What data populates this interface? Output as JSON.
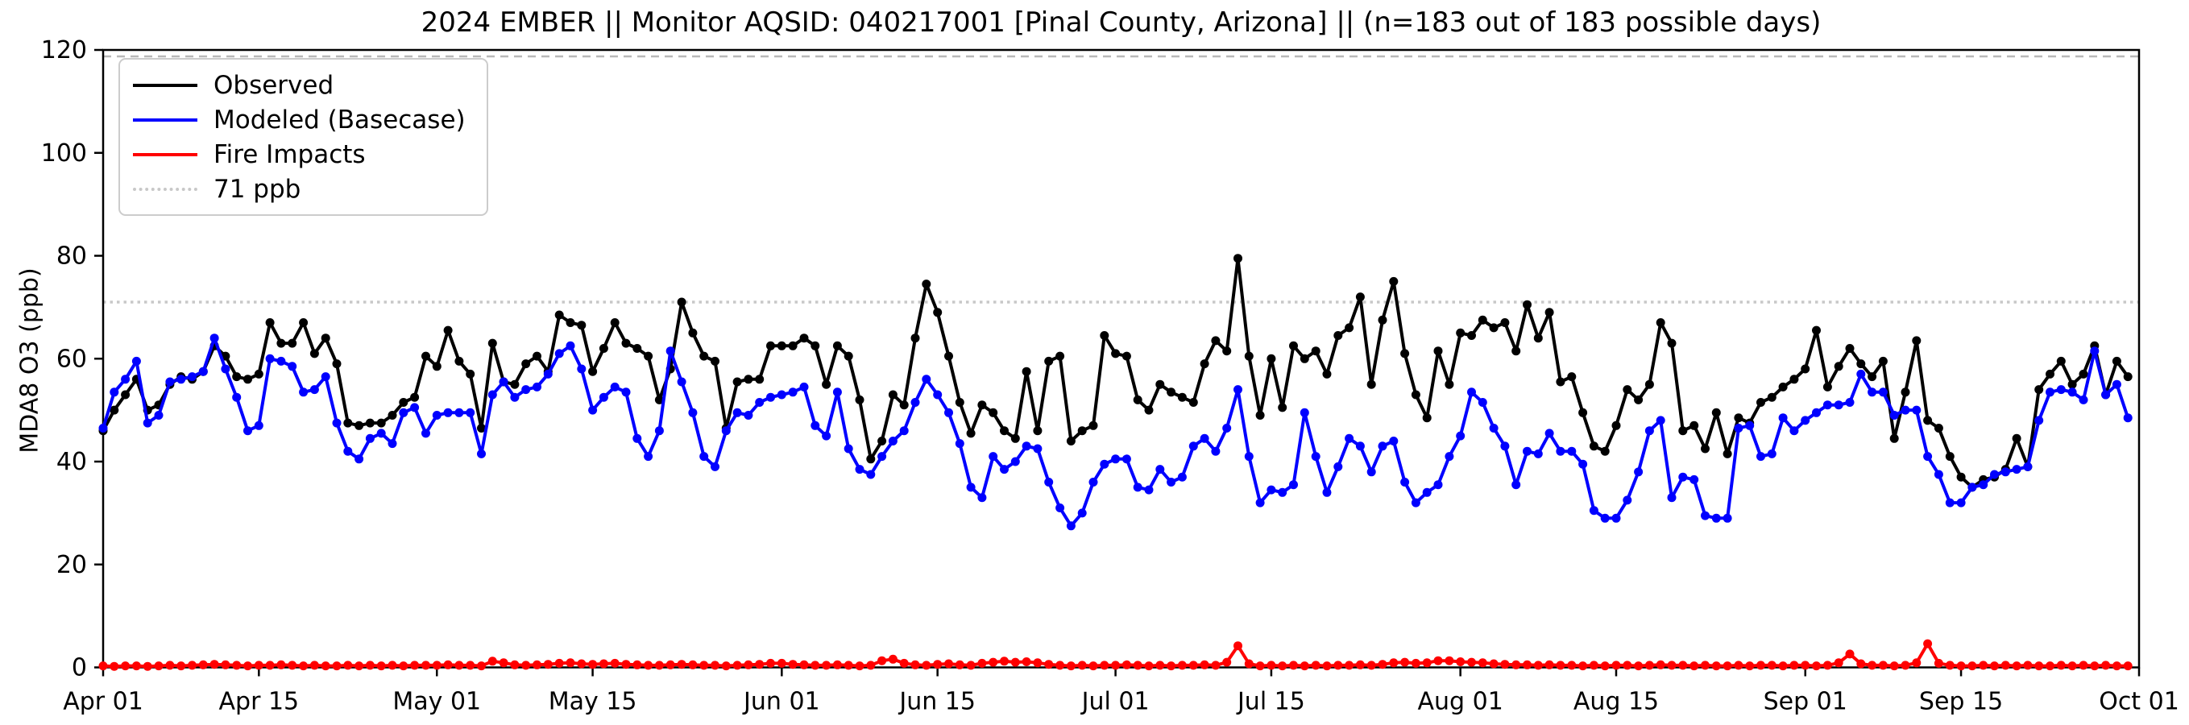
{
  "title": "2024 EMBER || Monitor AQSID: 040217001 [Pinal County, Arizona] || (n=183 out of 183 possible days)",
  "legend": [
    {
      "label": "Observed",
      "color": "#000000",
      "style": "solid"
    },
    {
      "label": "Modeled (Basecase)",
      "color": "#0000ff",
      "style": "solid"
    },
    {
      "label": "Fire Impacts",
      "color": "#ff0000",
      "style": "solid"
    },
    {
      "label": "71 ppb",
      "color": "#c8c8c8",
      "style": "dotted"
    }
  ],
  "chart_data": {
    "type": "line",
    "title": "2024 EMBER || Monitor AQSID: 040217001 [Pinal County, Arizona] || (n=183 out of 183 possible days)",
    "xlabel": "",
    "ylabel": "MDA8 O3 (ppb)",
    "ylim": [
      0,
      120
    ],
    "yticks": [
      0,
      20,
      40,
      60,
      80,
      100,
      120
    ],
    "n_days": 183,
    "x_start_label": "Apr 01",
    "x_end_label": "Oct 01",
    "xticks": [
      {
        "day": 0,
        "label": "Apr 01"
      },
      {
        "day": 14,
        "label": "Apr 15"
      },
      {
        "day": 30,
        "label": "May 01"
      },
      {
        "day": 44,
        "label": "May 15"
      },
      {
        "day": 61,
        "label": "Jun 01"
      },
      {
        "day": 75,
        "label": "Jun 15"
      },
      {
        "day": 91,
        "label": "Jul 01"
      },
      {
        "day": 105,
        "label": "Jul 15"
      },
      {
        "day": 122,
        "label": "Aug 01"
      },
      {
        "day": 136,
        "label": "Aug 15"
      },
      {
        "day": 153,
        "label": "Sep 01"
      },
      {
        "day": 167,
        "label": "Sep 15"
      },
      {
        "day": 183,
        "label": "Oct 01"
      }
    ],
    "threshold_ppb": 71,
    "threshold_color": "#c8c8c8",
    "top_reference_line": {
      "value": 118.8,
      "color": "#b8b8b8",
      "style": "dashed"
    },
    "grid": false,
    "legend_position": "upper-left",
    "series": [
      {
        "name": "Observed",
        "color": "#000000",
        "values": [
          46,
          50,
          53,
          56,
          50,
          51,
          55,
          56.5,
          56,
          57.5,
          62.5,
          60.5,
          56.5,
          56,
          57,
          67,
          63,
          63,
          67,
          61,
          64,
          59,
          47.5,
          47,
          47.5,
          47.5,
          49,
          51.5,
          52.5,
          60.5,
          58.5,
          65.5,
          59.5,
          57,
          46.5,
          63,
          55.5,
          55,
          59,
          60.5,
          57.5,
          68.5,
          67,
          66.5,
          57.5,
          62,
          67,
          63,
          62,
          60.5,
          52,
          58,
          71,
          65,
          60.5,
          59.5,
          46.5,
          55.5,
          56,
          56,
          62.5,
          62.5,
          62.5,
          64,
          62.5,
          55,
          62.5,
          60.5,
          52,
          40.5,
          44,
          53,
          51,
          64,
          74.5,
          69,
          60.5,
          51.5,
          45.5,
          51,
          49.5,
          46,
          44.5,
          57.5,
          46,
          59.5,
          60.5,
          44,
          46,
          47,
          64.5,
          61,
          60.5,
          52,
          50,
          55,
          53.5,
          52.5,
          51.5,
          59,
          63.5,
          61.5,
          79.5,
          60.5,
          49,
          60,
          50.5,
          62.5,
          60,
          61.5,
          57,
          64.5,
          66,
          72,
          55,
          67.5,
          75,
          61,
          53,
          48.5,
          61.5,
          55,
          65,
          64.5,
          67.5,
          66,
          67,
          61.5,
          70.5,
          64,
          69,
          55.5,
          56.5,
          49.5,
          43,
          42,
          47,
          54,
          52,
          55,
          67,
          63,
          46,
          47,
          42.5,
          49.5,
          41.5,
          48.5,
          47.5,
          51.5,
          52.5,
          54.5,
          56,
          58,
          65.5,
          54.5,
          58.5,
          62,
          59,
          56.5,
          59.5,
          44.5,
          53.5,
          63.5,
          48,
          46.5,
          41,
          37,
          35,
          36.5,
          37,
          38.5,
          44.5,
          39,
          54,
          57,
          59.5,
          55,
          57,
          62.5,
          53,
          59.5,
          56.5
        ]
      },
      {
        "name": "Modeled (Basecase)",
        "color": "#0000ff",
        "values": [
          46.5,
          53.5,
          56,
          59.5,
          47.5,
          49,
          55.5,
          56,
          56.5,
          57.5,
          64,
          58,
          52.5,
          46,
          47,
          60,
          59.5,
          58.5,
          53.5,
          54,
          56.5,
          47.5,
          42,
          40.5,
          44.5,
          45.5,
          43.5,
          49.5,
          50.5,
          45.5,
          49,
          49.5,
          49.5,
          49.5,
          41.5,
          53,
          55.5,
          52.5,
          54,
          54.5,
          57,
          61,
          62.5,
          58,
          50,
          52.5,
          54.5,
          53.5,
          44.5,
          41,
          46,
          61.5,
          55.5,
          49.5,
          41,
          39,
          46,
          49.5,
          49,
          51.5,
          52.5,
          53,
          53.5,
          54.5,
          47,
          45,
          53.5,
          42.5,
          38.5,
          37.5,
          41,
          44,
          46,
          51.5,
          56,
          53,
          49.5,
          43.5,
          35,
          33,
          41,
          38.5,
          40,
          43,
          42.5,
          36,
          31,
          27.5,
          30,
          36,
          39.5,
          40.5,
          40.5,
          35,
          34.5,
          38.5,
          36,
          37,
          43,
          44.5,
          42,
          46.5,
          54,
          41,
          32,
          34.5,
          34,
          35.5,
          49.5,
          41,
          34,
          39,
          44.5,
          43,
          38,
          43,
          44,
          36,
          32,
          34,
          35.5,
          41,
          45,
          53.5,
          51.5,
          46.5,
          43,
          35.5,
          42,
          41.5,
          45.5,
          42,
          42,
          39.5,
          30.5,
          29,
          29,
          32.5,
          38,
          46,
          48,
          33,
          37,
          36.5,
          29.5,
          29,
          29,
          46.5,
          47,
          41,
          41.5,
          48.5,
          46,
          48,
          49.5,
          51,
          51,
          51.5,
          57,
          53.5,
          53.5,
          49,
          50,
          50,
          41,
          37.5,
          32,
          32,
          35,
          35.5,
          37.5,
          38,
          38.5,
          39,
          48,
          53.5,
          54,
          53.5,
          52,
          61.5,
          53,
          55,
          48.5
        ]
      },
      {
        "name": "Fire Impacts",
        "color": "#ff0000",
        "values": [
          0.3,
          0.2,
          0.3,
          0.3,
          0.2,
          0.3,
          0.4,
          0.3,
          0.4,
          0.5,
          0.6,
          0.5,
          0.4,
          0.3,
          0.4,
          0.4,
          0.5,
          0.4,
          0.3,
          0.4,
          0.3,
          0.3,
          0.4,
          0.3,
          0.4,
          0.3,
          0.4,
          0.3,
          0.4,
          0.4,
          0.4,
          0.5,
          0.4,
          0.4,
          0.3,
          1.2,
          0.9,
          0.5,
          0.4,
          0.5,
          0.6,
          0.8,
          0.9,
          0.7,
          0.6,
          0.7,
          0.8,
          0.6,
          0.5,
          0.4,
          0.4,
          0.5,
          0.6,
          0.5,
          0.4,
          0.4,
          0.3,
          0.4,
          0.5,
          0.6,
          0.8,
          0.8,
          0.6,
          0.5,
          0.4,
          0.4,
          0.5,
          0.4,
          0.3,
          0.4,
          1.3,
          1.6,
          0.8,
          0.5,
          0.4,
          0.6,
          0.7,
          0.5,
          0.4,
          0.8,
          1.0,
          1.2,
          1.0,
          1.1,
          0.9,
          0.6,
          0.4,
          0.3,
          0.4,
          0.3,
          0.4,
          0.4,
          0.5,
          0.4,
          0.3,
          0.4,
          0.3,
          0.4,
          0.4,
          0.5,
          0.4,
          1.0,
          4.2,
          0.7,
          0.3,
          0.4,
          0.3,
          0.4,
          0.3,
          0.4,
          0.3,
          0.4,
          0.4,
          0.5,
          0.4,
          0.6,
          0.9,
          1.0,
          0.8,
          0.9,
          1.3,
          1.3,
          1.1,
          1.0,
          0.9,
          0.7,
          0.6,
          0.5,
          0.5,
          0.4,
          0.5,
          0.4,
          0.4,
          0.3,
          0.4,
          0.3,
          0.4,
          0.4,
          0.3,
          0.4,
          0.5,
          0.4,
          0.4,
          0.3,
          0.4,
          0.3,
          0.3,
          0.4,
          0.3,
          0.4,
          0.4,
          0.3,
          0.4,
          0.4,
          0.3,
          0.4,
          0.9,
          2.6,
          0.7,
          0.4,
          0.4,
          0.3,
          0.4,
          0.9,
          4.6,
          0.8,
          0.4,
          0.3,
          0.3,
          0.4,
          0.3,
          0.4,
          0.3,
          0.4,
          0.3,
          0.3,
          0.4,
          0.3,
          0.4,
          0.3,
          0.4,
          0.3,
          0.3
        ]
      }
    ]
  }
}
